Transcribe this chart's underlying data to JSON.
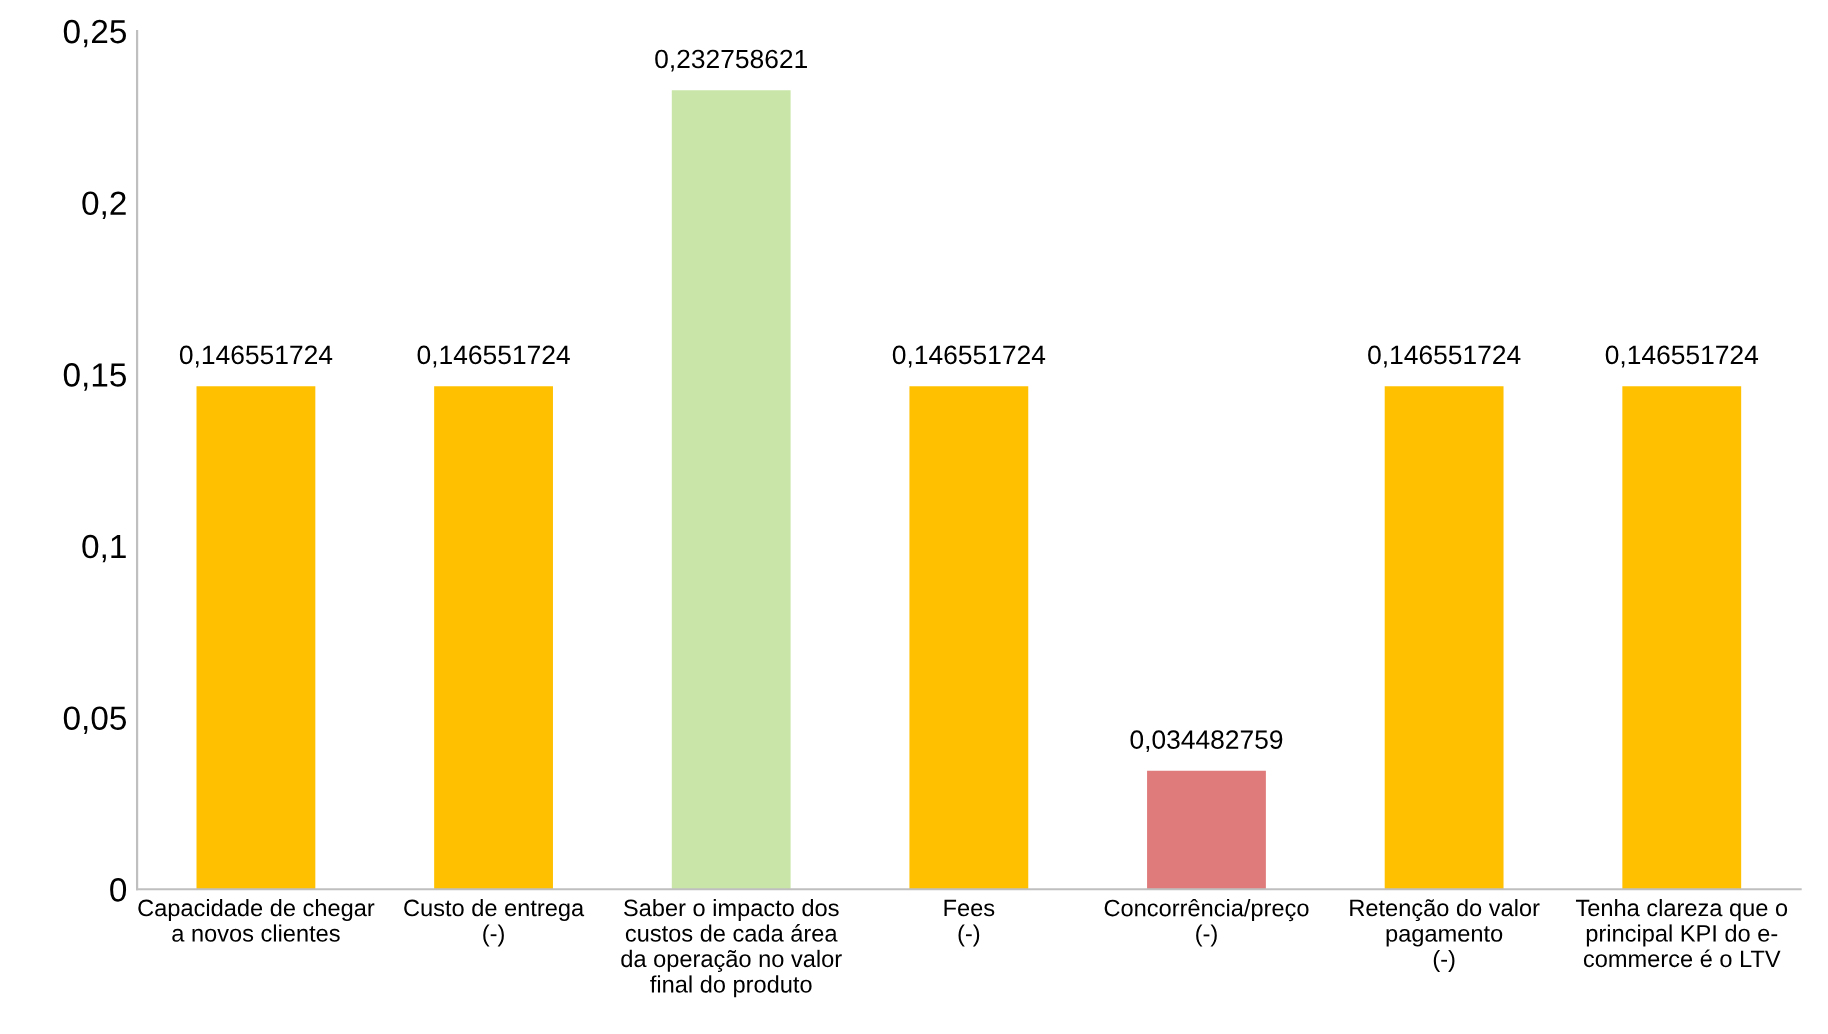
{
  "chart_data": {
    "type": "bar",
    "categories": [
      "Capacidade de chegar\na novos clientes",
      "Custo de entrega\n(-)",
      "Saber o impacto dos\ncustos de cada área\nda operação no valor\nfinal do produto",
      "Fees\n(-)",
      "Concorrência/preço\n(-)",
      "Retenção do valor\npagamento\n(-)",
      "Tenha clareza que o\nprincipal KPI do e-\ncommerce é o LTV"
    ],
    "values": [
      0.146551724,
      0.146551724,
      0.232758621,
      0.146551724,
      0.034482759,
      0.146551724,
      0.146551724
    ],
    "colors": [
      "#ffc000",
      "#ffc000",
      "#c9e6a8",
      "#ffc000",
      "#e07b7b",
      "#ffc000",
      "#ffc000"
    ],
    "value_labels": [
      "0,146551724",
      "0,146551724",
      "0,232758621",
      "0,146551724",
      "0,034482759",
      "0,146551724",
      "0,146551724"
    ],
    "ylim": [
      0,
      0.25
    ],
    "yticks": [
      {
        "value": 0,
        "label": "0"
      },
      {
        "value": 0.05,
        "label": "0,05"
      },
      {
        "value": 0.1,
        "label": "0,1"
      },
      {
        "value": 0.15,
        "label": "0,15"
      },
      {
        "value": 0.2,
        "label": "0,2"
      },
      {
        "value": 0.25,
        "label": "0,25"
      }
    ],
    "grid": false,
    "legend": false
  }
}
